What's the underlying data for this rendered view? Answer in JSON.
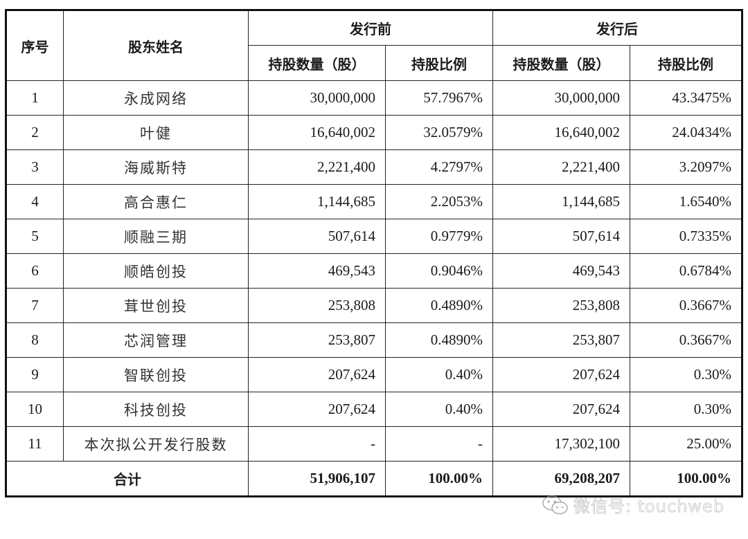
{
  "table": {
    "headers": {
      "index": "序号",
      "name": "股东姓名",
      "before_group": "发行前",
      "after_group": "发行后",
      "shares": "持股数量（股）",
      "ratio": "持股比例"
    },
    "rows": [
      {
        "index": "1",
        "name": "永成网络",
        "before_shares": "30,000,000",
        "before_ratio": "57.7967%",
        "after_shares": "30,000,000",
        "after_ratio": "43.3475%"
      },
      {
        "index": "2",
        "name": "叶健",
        "before_shares": "16,640,002",
        "before_ratio": "32.0579%",
        "after_shares": "16,640,002",
        "after_ratio": "24.0434%"
      },
      {
        "index": "3",
        "name": "海威斯特",
        "before_shares": "2,221,400",
        "before_ratio": "4.2797%",
        "after_shares": "2,221,400",
        "after_ratio": "3.2097%"
      },
      {
        "index": "4",
        "name": "高合惠仁",
        "before_shares": "1,144,685",
        "before_ratio": "2.2053%",
        "after_shares": "1,144,685",
        "after_ratio": "1.6540%"
      },
      {
        "index": "5",
        "name": "顺融三期",
        "before_shares": "507,614",
        "before_ratio": "0.9779%",
        "after_shares": "507,614",
        "after_ratio": "0.7335%"
      },
      {
        "index": "6",
        "name": "顺皓创投",
        "before_shares": "469,543",
        "before_ratio": "0.9046%",
        "after_shares": "469,543",
        "after_ratio": "0.6784%"
      },
      {
        "index": "7",
        "name": "茸世创投",
        "before_shares": "253,808",
        "before_ratio": "0.4890%",
        "after_shares": "253,808",
        "after_ratio": "0.3667%"
      },
      {
        "index": "8",
        "name": "芯润管理",
        "before_shares": "253,807",
        "before_ratio": "0.4890%",
        "after_shares": "253,807",
        "after_ratio": "0.3667%"
      },
      {
        "index": "9",
        "name": "智联创投",
        "before_shares": "207,624",
        "before_ratio": "0.40%",
        "after_shares": "207,624",
        "after_ratio": "0.30%"
      },
      {
        "index": "10",
        "name": "科技创投",
        "before_shares": "207,624",
        "before_ratio": "0.40%",
        "after_shares": "207,624",
        "after_ratio": "0.30%"
      },
      {
        "index": "11",
        "name": "本次拟公开发行股数",
        "before_shares": "-",
        "before_ratio": "-",
        "after_shares": "17,302,100",
        "after_ratio": "25.00%"
      }
    ],
    "total": {
      "label": "合计",
      "before_shares": "51,906,107",
      "before_ratio": "100.00%",
      "after_shares": "69,208,207",
      "after_ratio": "100.00%"
    }
  },
  "watermark": {
    "icon": "wechat-icon",
    "text": "微信号: touchweb"
  }
}
